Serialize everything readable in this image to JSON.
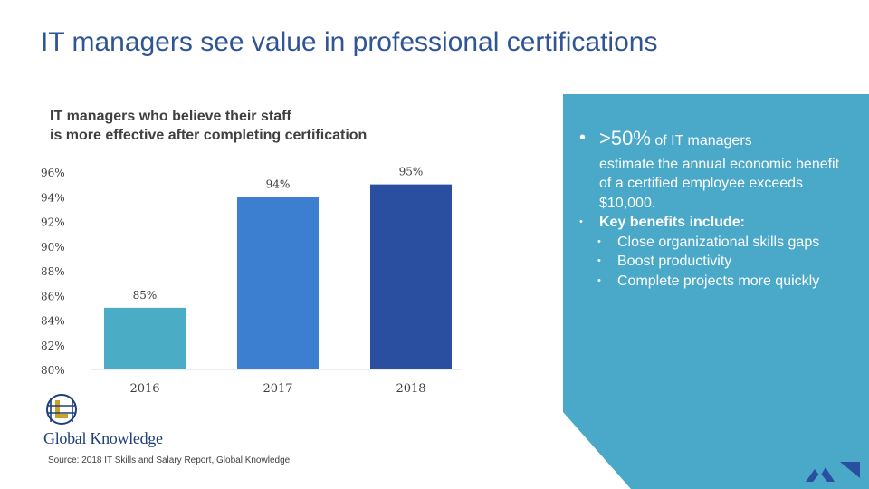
{
  "slide": {
    "title": "IT managers see value in professional certifications",
    "source": "Source: 2018 IT Skills and Salary Report, Global Knowledge",
    "logo_text": "Global Knowledge"
  },
  "chart_data": {
    "type": "bar",
    "title_lines": [
      "IT managers who believe their staff",
      "is more effective after completing certification"
    ],
    "categories": [
      "2016",
      "2017",
      "2018"
    ],
    "values": [
      85,
      94,
      95
    ],
    "data_labels": [
      "85%",
      "94%",
      "95%"
    ],
    "colors": [
      "#4bacc6",
      "#3c7fd1",
      "#2a4fa0"
    ],
    "ylim": [
      80,
      96
    ],
    "ytick_labels": [
      "96%",
      "94%",
      "92%",
      "90%",
      "88%",
      "86%",
      "84%",
      "82%",
      "80%"
    ],
    "ytick_values": [
      96,
      94,
      92,
      90,
      88,
      86,
      84,
      82,
      80
    ],
    "grid": false,
    "legend": "none"
  },
  "callout": {
    "bg_color": "#4aa8c8",
    "point1_big": ">50%",
    "point1_rest": "of IT managers",
    "point1_cont": "estimate the annual economic benefit of a certified employee exceeds $10,000.",
    "point2": "Key benefits include:",
    "sub_points": [
      "Close organizational skills gaps",
      "Boost productivity",
      "Complete projects more quickly"
    ]
  }
}
